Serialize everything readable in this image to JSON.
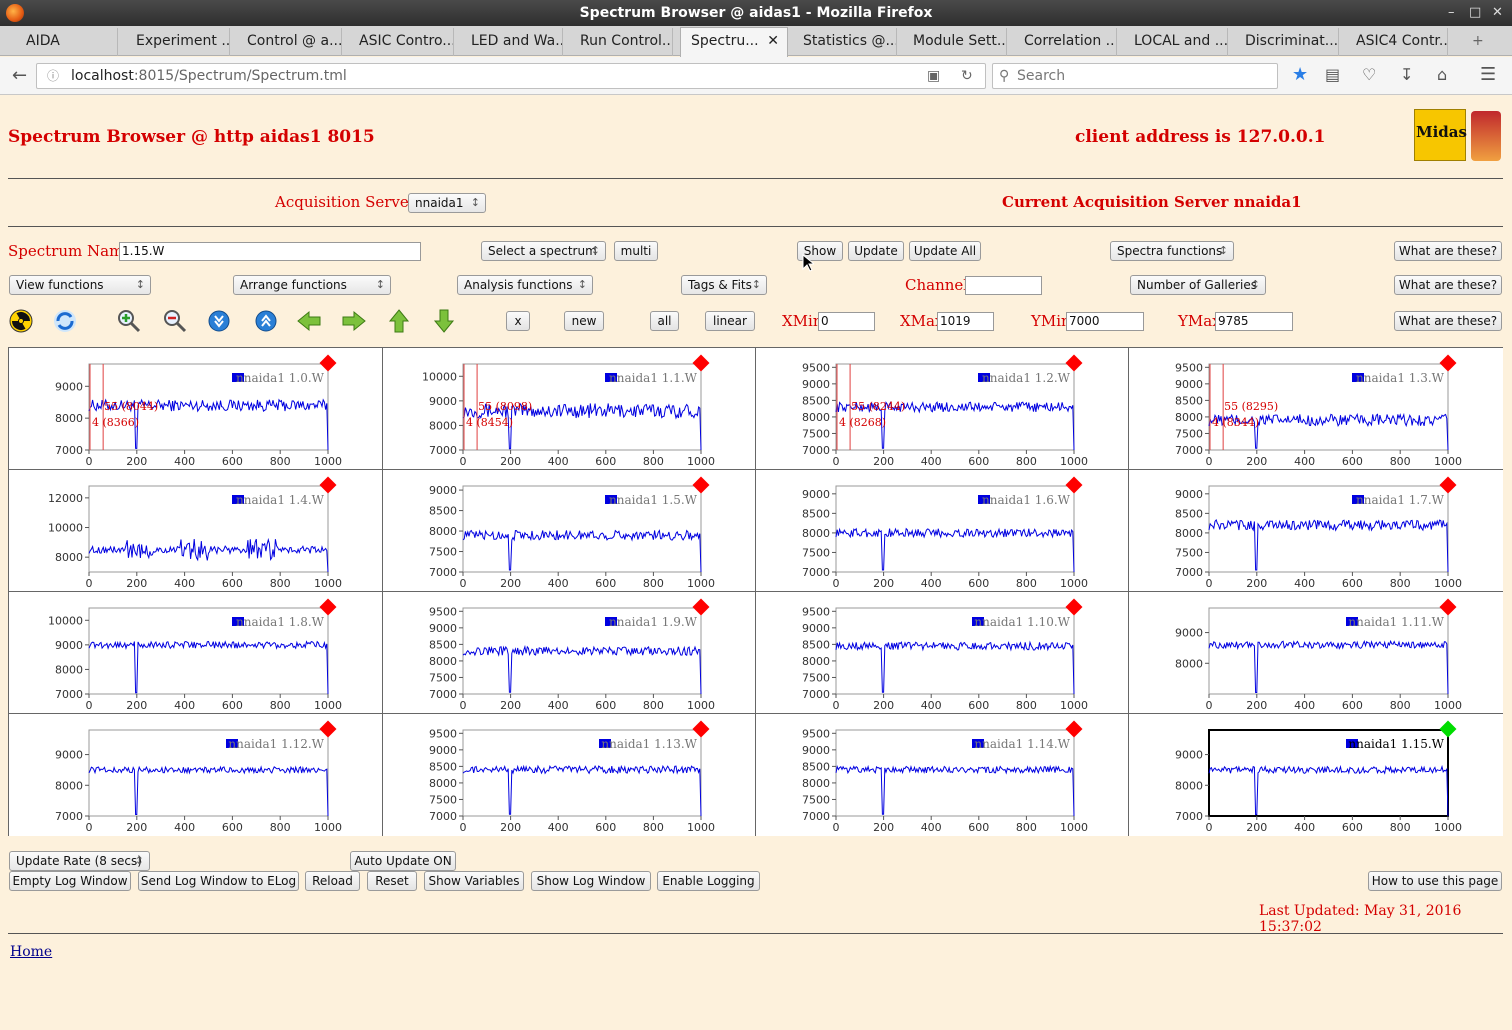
{
  "window": {
    "title": "Spectrum Browser @ aidas1 - Mozilla Firefox"
  },
  "tabs": [
    {
      "label": "AIDA"
    },
    {
      "label": "Experiment ..."
    },
    {
      "label": "Control @ a..."
    },
    {
      "label": "ASIC Contro..."
    },
    {
      "label": "LED and Wa..."
    },
    {
      "label": "Run Control..."
    },
    {
      "label": "Spectru...",
      "active": true
    },
    {
      "label": "Statistics @..."
    },
    {
      "label": "Module Sett..."
    },
    {
      "label": "Correlation ..."
    },
    {
      "label": "LOCAL and ..."
    },
    {
      "label": "Discriminat..."
    },
    {
      "label": "ASIC4 Contr..."
    }
  ],
  "nav": {
    "url_host": "localhost",
    "url_path": ":8015/Spectrum/Spectrum.tml",
    "search_placeholder": "Search"
  },
  "page": {
    "title": "Spectrum Browser @ http aidas1 8015",
    "client": "client address is 127.0.0.1",
    "acq_label": "Acquisition Servers",
    "acq_value": "nnaida1",
    "current_server": "Current Acquisition Server nnaida1",
    "spectrum_name_label": "Spectrum Name:",
    "spectrum_name_value": "1.15.W",
    "select_spectrum": "Select a spectrum",
    "multi": "multi",
    "show": "Show",
    "update": "Update",
    "update_all": "Update All",
    "spectra_functions": "Spectra functions",
    "what": "What are these?",
    "view_functions": "View functions",
    "arrange_functions": "Arrange functions",
    "analysis_functions": "Analysis functions",
    "tags_fits": "Tags & Fits",
    "channel_label": "Channel:",
    "galleries": "Number of Galleries",
    "x_btn": "x",
    "new_btn": "new",
    "all_btn": "all",
    "linear_btn": "linear",
    "xmin_label": "XMin",
    "xmin": "0",
    "xmax_label": "XMax",
    "xmax": "1019",
    "ymin_label": "YMin",
    "ymin": "7000",
    "ymax_label": "YMax",
    "ymax": "9785",
    "update_rate": "Update Rate (8 secs)",
    "auto_update": "Auto Update ON",
    "empty_log": "Empty Log Window",
    "send_log": "Send Log Window to ELog",
    "reload": "Reload",
    "reset": "Reset",
    "show_vars": "Show Variables",
    "show_log": "Show Log Window",
    "enable_logging": "Enable Logging",
    "how_to": "How to use this page",
    "last_updated": "Last Updated: May 31, 2016 15:37:02",
    "home": "Home"
  },
  "colors": {
    "trace": "#0000e0",
    "status_red": "#ff0000",
    "status_green": "#00dd00",
    "label_red": "#d40000"
  },
  "icons": [
    "radiation-icon",
    "refresh-icon",
    "zoom-in-icon",
    "zoom-out-icon",
    "expand-y-icon",
    "compress-y-icon",
    "arrow-left-icon",
    "arrow-right-icon",
    "arrow-up-icon",
    "arrow-down-icon"
  ],
  "chart_data": [
    {
      "type": "line",
      "name": "nnaida1 1.0.W",
      "xlim": [
        0,
        1000
      ],
      "xticks": [
        "0",
        "200",
        "400",
        "600",
        "800",
        "1000"
      ],
      "yticks": [
        "7000",
        "8000",
        "9000"
      ],
      "ylim": [
        7000,
        9700
      ],
      "base": 8400,
      "noise": 180,
      "markers": [
        "55 (8044)",
        "4 (8366)"
      ],
      "status": "red"
    },
    {
      "type": "line",
      "name": "nnaida1 1.1.W",
      "xlim": [
        0,
        1000
      ],
      "xticks": [
        "0",
        "200",
        "400",
        "600",
        "800",
        "1000"
      ],
      "yticks": [
        "7000",
        "8000",
        "9000",
        "10000"
      ],
      "ylim": [
        7000,
        10500
      ],
      "base": 8600,
      "noise": 300,
      "markers": [
        "55 (8098)",
        "4 (8454)"
      ],
      "status": "red"
    },
    {
      "type": "line",
      "name": "nnaida1 1.2.W",
      "xlim": [
        0,
        1000
      ],
      "xticks": [
        "0",
        "200",
        "400",
        "600",
        "800",
        "1000"
      ],
      "yticks": [
        "7000",
        "7500",
        "8000",
        "8500",
        "9000",
        "9500"
      ],
      "ylim": [
        7000,
        9600
      ],
      "base": 8300,
      "noise": 150,
      "markers": [
        "55 (8244)",
        "4 (8268)"
      ],
      "status": "red"
    },
    {
      "type": "line",
      "name": "nnaida1 1.3.W",
      "xlim": [
        0,
        1000
      ],
      "xticks": [
        "0",
        "200",
        "400",
        "600",
        "800",
        "1000"
      ],
      "yticks": [
        "7000",
        "7500",
        "8000",
        "8500",
        "9000",
        "9500"
      ],
      "ylim": [
        7000,
        9600
      ],
      "base": 7900,
      "noise": 180,
      "markers": [
        "55 (8295)",
        "4 (8344)"
      ],
      "status": "red"
    },
    {
      "type": "line",
      "name": "nnaida1 1.4.W",
      "xlim": [
        0,
        1000
      ],
      "xticks": [
        "0",
        "200",
        "400",
        "600",
        "800",
        "1000"
      ],
      "yticks": [
        "8000",
        "10000",
        "12000"
      ],
      "ylim": [
        7000,
        12800
      ],
      "base": 8500,
      "noise": 250,
      "markers": [],
      "status": "red"
    },
    {
      "type": "line",
      "name": "nnaida1 1.5.W",
      "xlim": [
        0,
        1000
      ],
      "xticks": [
        "0",
        "200",
        "400",
        "600",
        "800",
        "1000"
      ],
      "yticks": [
        "7000",
        "7500",
        "8000",
        "8500",
        "9000"
      ],
      "ylim": [
        7000,
        9100
      ],
      "base": 7900,
      "noise": 120,
      "markers": [],
      "status": "red"
    },
    {
      "type": "line",
      "name": "nnaida1 1.6.W",
      "xlim": [
        0,
        1000
      ],
      "xticks": [
        "0",
        "200",
        "400",
        "600",
        "800",
        "1000"
      ],
      "yticks": [
        "7000",
        "7500",
        "8000",
        "8500",
        "9000"
      ],
      "ylim": [
        7000,
        9200
      ],
      "base": 8000,
      "noise": 110,
      "markers": [],
      "status": "red"
    },
    {
      "type": "line",
      "name": "nnaida1 1.7.W",
      "xlim": [
        0,
        1000
      ],
      "xticks": [
        "0",
        "200",
        "400",
        "600",
        "800",
        "1000"
      ],
      "yticks": [
        "7000",
        "7500",
        "8000",
        "8500",
        "9000"
      ],
      "ylim": [
        7000,
        9200
      ],
      "base": 8200,
      "noise": 130,
      "markers": [],
      "status": "red"
    },
    {
      "type": "line",
      "name": "nnaida1 1.8.W",
      "xlim": [
        0,
        1000
      ],
      "xticks": [
        "0",
        "200",
        "400",
        "600",
        "800",
        "1000"
      ],
      "yticks": [
        "7000",
        "8000",
        "9000",
        "10000"
      ],
      "ylim": [
        7000,
        10500
      ],
      "base": 9000,
      "noise": 140,
      "markers": [],
      "status": "red"
    },
    {
      "type": "line",
      "name": "nnaida1 1.9.W",
      "xlim": [
        0,
        1000
      ],
      "xticks": [
        "0",
        "200",
        "400",
        "600",
        "800",
        "1000"
      ],
      "yticks": [
        "7000",
        "7500",
        "8000",
        "8500",
        "9000",
        "9500"
      ],
      "ylim": [
        7000,
        9600
      ],
      "base": 8300,
      "noise": 130,
      "markers": [],
      "status": "red"
    },
    {
      "type": "line",
      "name": "nnaida1 1.10.W",
      "xlim": [
        0,
        1000
      ],
      "xticks": [
        "0",
        "200",
        "400",
        "600",
        "800",
        "1000"
      ],
      "yticks": [
        "7000",
        "7500",
        "8000",
        "8500",
        "9000",
        "9500"
      ],
      "ylim": [
        7000,
        9600
      ],
      "base": 8450,
      "noise": 120,
      "markers": [],
      "status": "red"
    },
    {
      "type": "line",
      "name": "nnaida1 1.11.W",
      "xlim": [
        0,
        1000
      ],
      "xticks": [
        "0",
        "200",
        "400",
        "600",
        "800",
        "1000"
      ],
      "yticks": [
        "8000",
        "9000"
      ],
      "ylim": [
        7000,
        9800
      ],
      "base": 8600,
      "noise": 120,
      "markers": [],
      "status": "red"
    },
    {
      "type": "line",
      "name": "nnaida1 1.12.W",
      "xlim": [
        0,
        1000
      ],
      "xticks": [
        "0",
        "200",
        "400",
        "600",
        "800",
        "1000"
      ],
      "yticks": [
        "7000",
        "8000",
        "9000"
      ],
      "ylim": [
        7000,
        9800
      ],
      "base": 8500,
      "noise": 100,
      "markers": [],
      "status": "red"
    },
    {
      "type": "line",
      "name": "nnaida1 1.13.W",
      "xlim": [
        0,
        1000
      ],
      "xticks": [
        "0",
        "200",
        "400",
        "600",
        "800",
        "1000"
      ],
      "yticks": [
        "7000",
        "7500",
        "8000",
        "8500",
        "9000",
        "9500"
      ],
      "ylim": [
        7000,
        9600
      ],
      "base": 8400,
      "noise": 110,
      "markers": [],
      "status": "red"
    },
    {
      "type": "line",
      "name": "nnaida1 1.14.W",
      "xlim": [
        0,
        1000
      ],
      "xticks": [
        "0",
        "200",
        "400",
        "600",
        "800",
        "1000"
      ],
      "yticks": [
        "7000",
        "7500",
        "8000",
        "8500",
        "9000",
        "9500"
      ],
      "ylim": [
        7000,
        9600
      ],
      "base": 8400,
      "noise": 100,
      "markers": [],
      "status": "red"
    },
    {
      "type": "line",
      "name": "nnaida1 1.15.W",
      "xlim": [
        0,
        1000
      ],
      "xticks": [
        "0",
        "200",
        "400",
        "600",
        "800",
        "1000"
      ],
      "yticks": [
        "7000",
        "8000",
        "9000"
      ],
      "ylim": [
        7000,
        9800
      ],
      "base": 8500,
      "noise": 110,
      "markers": [],
      "status": "green",
      "selected": true
    }
  ]
}
